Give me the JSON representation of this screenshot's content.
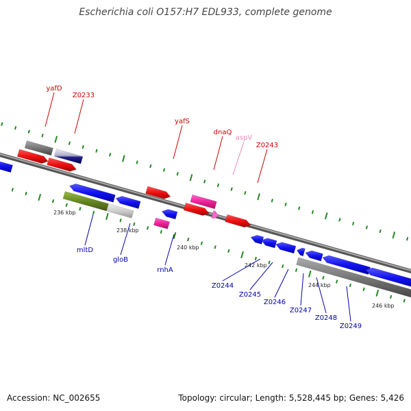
{
  "title": "Escherichia coli O157:H7 EDL933, complete genome",
  "footer": {
    "accession": "Accession: NC_002655",
    "summary": "Topology: circular; Length: 5,528,445 bp; Genes: 5,426"
  },
  "colors": {
    "forward_label": "#cc0000",
    "reverse_label": "#0000aa",
    "trna_label": "#ee88bb",
    "backbone": "#888888",
    "tick": "#228822"
  },
  "scale_labels": [
    "236 kbp",
    "238 kbp",
    "240 kbp",
    "242 kbp",
    "244 kbp",
    "246 kbp"
  ],
  "forward_genes": [
    "yafD",
    "Z0233",
    "yafS",
    "dnaQ",
    "aspV",
    "Z0243"
  ],
  "reverse_genes": [
    "mltD",
    "gloB",
    "rnhA",
    "Z0244",
    "Z0245",
    "Z0246",
    "Z0247",
    "Z0248",
    "Z0249"
  ]
}
